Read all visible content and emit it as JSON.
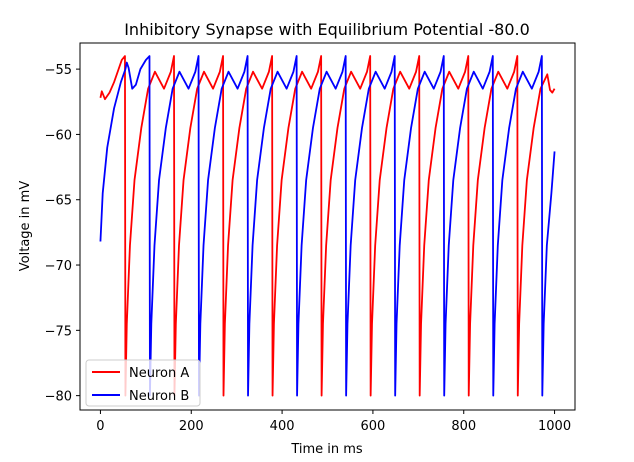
{
  "chart_data": {
    "type": "line",
    "title": "Inhibitory Synapse with Equilibrium Potential -80.0",
    "xlabel": "Time in ms",
    "ylabel": "Voltage in mV",
    "xlim": [
      -45,
      1045
    ],
    "ylim": [
      -81.1,
      -53.0
    ],
    "x_ticks": [
      0,
      200,
      400,
      600,
      800,
      1000
    ],
    "y_ticks": [
      -80,
      -75,
      -70,
      -65,
      -60,
      -55
    ],
    "y_tick_labels": [
      "−80",
      "−75",
      "−70",
      "−65",
      "−60",
      "−55"
    ],
    "grid": false,
    "legend_position": "lower-left",
    "series": [
      {
        "name": "Neuron A",
        "color": "#ff0000",
        "x": [
          0,
          3,
          10,
          20,
          30,
          40,
          47,
          54,
          55,
          58,
          65,
          75,
          90,
          105,
          120,
          140,
          155,
          162,
          163,
          166,
          173,
          183,
          198,
          213,
          228,
          248,
          263,
          270,
          271,
          274,
          281,
          291,
          306,
          321,
          336,
          356,
          371,
          378,
          379,
          382,
          389,
          399,
          414,
          429,
          444,
          464,
          479,
          486,
          487,
          490,
          497,
          507,
          522,
          537,
          552,
          572,
          587,
          594,
          595,
          598,
          605,
          615,
          630,
          645,
          660,
          680,
          695,
          702,
          703,
          706,
          713,
          723,
          738,
          753,
          768,
          788,
          803,
          810,
          811,
          814,
          821,
          831,
          846,
          861,
          876,
          896,
          911,
          918,
          919,
          922,
          929,
          939,
          954,
          969,
          984,
          990,
          995,
          1000
        ],
        "y": [
          -57.2,
          -56.7,
          -57.3,
          -56.8,
          -56.0,
          -55.0,
          -54.3,
          -54.0,
          -80.0,
          -74.5,
          -68.5,
          -63.5,
          -59.5,
          -56.5,
          -55.2,
          -56.5,
          -55.2,
          -54.0,
          -80.0,
          -74.5,
          -68.5,
          -63.5,
          -59.5,
          -56.5,
          -55.2,
          -56.5,
          -55.2,
          -54.0,
          -80.0,
          -74.5,
          -68.5,
          -63.5,
          -59.5,
          -56.5,
          -55.2,
          -56.5,
          -55.2,
          -54.0,
          -80.0,
          -74.5,
          -68.5,
          -63.5,
          -59.5,
          -56.5,
          -55.2,
          -56.5,
          -55.2,
          -54.0,
          -80.0,
          -74.5,
          -68.5,
          -63.5,
          -59.5,
          -56.5,
          -55.2,
          -56.5,
          -55.2,
          -54.0,
          -80.0,
          -74.5,
          -68.5,
          -63.5,
          -59.5,
          -56.5,
          -55.2,
          -56.5,
          -55.2,
          -54.0,
          -80.0,
          -74.5,
          -68.5,
          -63.5,
          -59.5,
          -56.5,
          -55.2,
          -56.5,
          -55.2,
          -54.0,
          -80.0,
          -74.5,
          -68.5,
          -63.5,
          -59.5,
          -56.5,
          -55.2,
          -56.5,
          -55.2,
          -54.0,
          -80.0,
          -74.5,
          -68.5,
          -63.5,
          -59.5,
          -56.5,
          -55.4,
          -56.6,
          -56.8,
          -56.5
        ]
      },
      {
        "name": "Neuron B",
        "color": "#0000ff",
        "x": [
          0,
          5,
          15,
          30,
          45,
          55,
          58,
          62,
          70,
          78,
          88,
          100,
          108,
          109,
          112,
          119,
          129,
          144,
          159,
          174,
          194,
          209,
          216,
          217,
          220,
          227,
          237,
          252,
          267,
          282,
          302,
          317,
          324,
          325,
          328,
          335,
          345,
          360,
          375,
          390,
          410,
          425,
          432,
          433,
          436,
          443,
          453,
          468,
          483,
          498,
          518,
          533,
          540,
          541,
          544,
          551,
          561,
          576,
          591,
          606,
          626,
          641,
          648,
          649,
          652,
          659,
          669,
          684,
          699,
          714,
          734,
          749,
          756,
          757,
          760,
          767,
          777,
          792,
          807,
          822,
          842,
          857,
          864,
          865,
          868,
          875,
          885,
          900,
          915,
          930,
          950,
          965,
          972,
          973,
          976,
          983,
          993,
          1000
        ],
        "y": [
          -68.2,
          -64.5,
          -61.0,
          -58.0,
          -56.0,
          -55.0,
          -54.5,
          -54.9,
          -56.5,
          -56.2,
          -55.0,
          -54.3,
          -54.0,
          -80.0,
          -74.5,
          -68.5,
          -63.5,
          -59.5,
          -56.5,
          -55.2,
          -56.5,
          -55.2,
          -54.0,
          -80.0,
          -74.5,
          -68.5,
          -63.5,
          -59.5,
          -56.5,
          -55.2,
          -56.5,
          -55.2,
          -54.0,
          -80.0,
          -74.5,
          -68.5,
          -63.5,
          -59.5,
          -56.5,
          -55.2,
          -56.5,
          -55.2,
          -54.0,
          -80.0,
          -74.5,
          -68.5,
          -63.5,
          -59.5,
          -56.5,
          -55.2,
          -56.5,
          -55.2,
          -54.0,
          -80.0,
          -74.5,
          -68.5,
          -63.5,
          -59.5,
          -56.5,
          -55.2,
          -56.5,
          -55.2,
          -54.0,
          -80.0,
          -74.5,
          -68.5,
          -63.5,
          -59.5,
          -56.5,
          -55.2,
          -56.5,
          -55.2,
          -54.0,
          -80.0,
          -74.5,
          -68.5,
          -63.5,
          -59.5,
          -56.5,
          -55.2,
          -56.5,
          -55.2,
          -54.0,
          -80.0,
          -74.5,
          -68.5,
          -63.5,
          -59.5,
          -56.5,
          -55.2,
          -56.5,
          -55.2,
          -54.0,
          -80.0,
          -74.5,
          -68.5,
          -64.5,
          -61.3
        ]
      }
    ]
  }
}
